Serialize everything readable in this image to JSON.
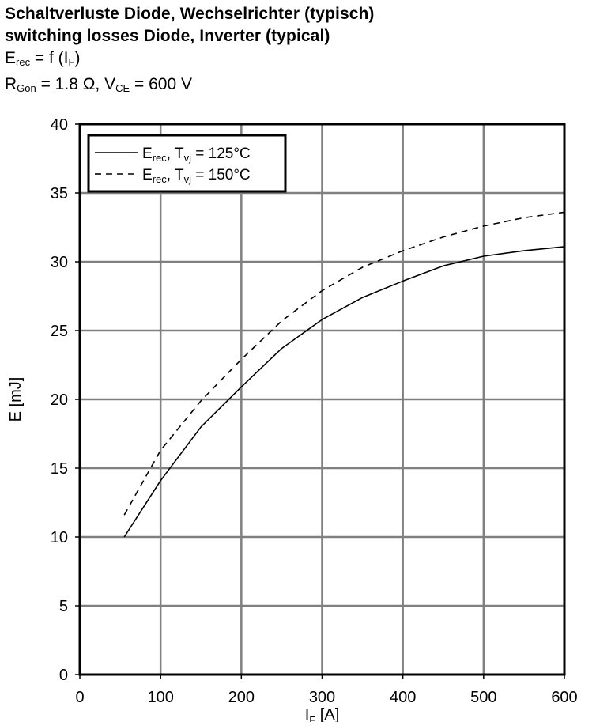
{
  "header": {
    "title_de": "Schaltverluste Diode, Wechselrichter (typisch)",
    "title_en": "switching losses Diode, Inverter (typical)",
    "formula": {
      "left": "E",
      "left_sub": "rec",
      "rest": " = f (I",
      "arg_sub": "F",
      "close": ")"
    },
    "conditions": {
      "r": "R",
      "r_sub": "Gon",
      "r_val": " = 1.8 Ω, V",
      "v_sub": "CE",
      "v_val": " = 600 V"
    }
  },
  "chart_data": {
    "type": "line",
    "xlabel": {
      "main": "I",
      "sub": "F",
      "unit": " [A]"
    },
    "ylabel": "E [mJ]",
    "xlim": [
      0,
      600
    ],
    "ylim": [
      0,
      40
    ],
    "xticks": [
      0,
      100,
      200,
      300,
      400,
      500,
      600
    ],
    "yticks": [
      0,
      5,
      10,
      15,
      20,
      25,
      30,
      35,
      40
    ],
    "grid": true,
    "legend_position": "top-left",
    "series": [
      {
        "name": "Erec, Tvj = 125°C",
        "label": {
          "main": "E",
          "sub": "rec",
          "mid": ", T",
          "sub2": "vj",
          "tail": " = 125°C"
        },
        "style": "solid",
        "x": [
          55,
          100,
          150,
          200,
          250,
          300,
          350,
          400,
          450,
          500,
          550,
          600
        ],
        "y": [
          10.0,
          14.1,
          18.0,
          20.9,
          23.7,
          25.8,
          27.4,
          28.6,
          29.7,
          30.4,
          30.8,
          31.1
        ]
      },
      {
        "name": "Erec, Tvj = 150°C",
        "label": {
          "main": "E",
          "sub": "rec",
          "mid": ", T",
          "sub2": "vj",
          "tail": " = 150°C"
        },
        "style": "dashed",
        "x": [
          55,
          100,
          150,
          200,
          250,
          300,
          350,
          400,
          450,
          500,
          550,
          600
        ],
        "y": [
          11.6,
          16.3,
          19.9,
          22.9,
          25.7,
          27.9,
          29.6,
          30.8,
          31.8,
          32.6,
          33.2,
          33.6
        ]
      }
    ]
  }
}
